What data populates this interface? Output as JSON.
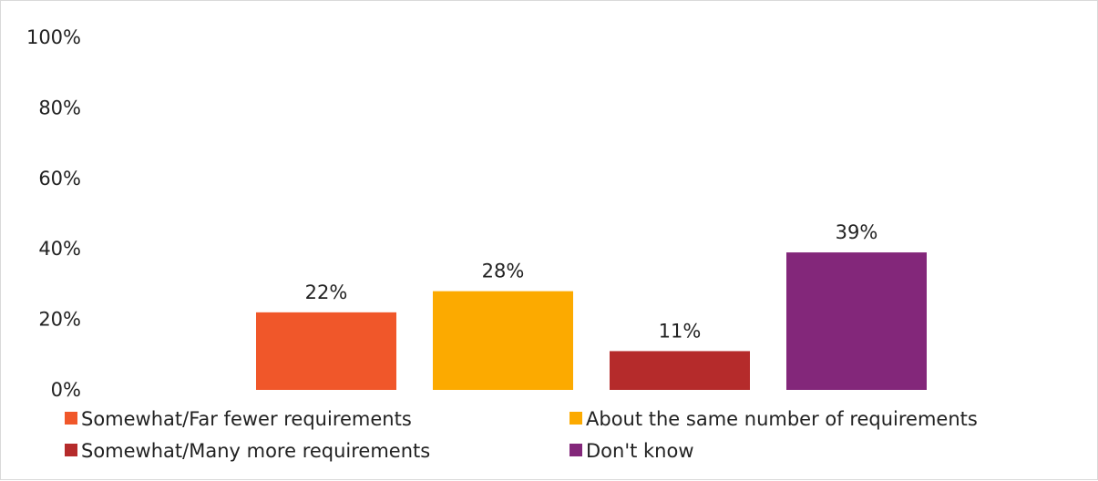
{
  "chart_data": {
    "type": "bar",
    "title": "",
    "xlabel": "",
    "ylabel": "",
    "ylim": [
      0,
      100
    ],
    "y_ticks": [
      "0%",
      "20%",
      "40%",
      "60%",
      "80%",
      "100%"
    ],
    "grid": false,
    "legend_position": "bottom",
    "categories": [
      "Somewhat/Far fewer requirements",
      "About the same number of requirements",
      "Somewhat/Many more requirements",
      "Don't know"
    ],
    "values": [
      22,
      28,
      11,
      39
    ],
    "data_labels": [
      "22%",
      "28%",
      "11%",
      "39%"
    ],
    "colors": [
      "#f0572a",
      "#fcaa00",
      "#b52b2b",
      "#83277a"
    ]
  }
}
